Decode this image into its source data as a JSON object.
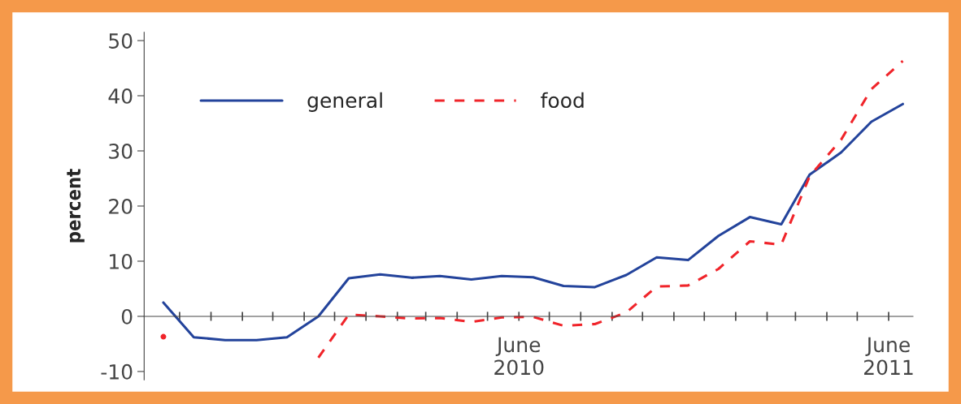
{
  "chart_data": {
    "type": "line",
    "ylabel": "percent",
    "x": [
      "2009-06-15",
      "2009-07-15",
      "2009-08-15",
      "2009-09-15",
      "2009-10-15",
      "2009-11-15",
      "2009-12-15",
      "2010-01-15",
      "2010-02-15",
      "2010-03-15",
      "2010-04-15",
      "2010-05-15",
      "2010-06-15",
      "2010-07-15",
      "2010-08-15",
      "2010-09-15",
      "2010-10-15",
      "2010-11-15",
      "2010-12-15",
      "2011-01-15",
      "2011-02-15",
      "2011-03-15",
      "2011-04-15",
      "2011-05-15",
      "2011-06-15"
    ],
    "series": [
      {
        "name": "general",
        "color": "#23439b",
        "line_style": "solid",
        "values": [
          2.5,
          -3.8,
          -4.3,
          -4.3,
          -3.8,
          0,
          6.9,
          7.6,
          7.0,
          7.3,
          6.7,
          7.3,
          7.1,
          5.5,
          5.3,
          7.5,
          10.7,
          10.2,
          14.6,
          18.0,
          16.7,
          25.7,
          29.7,
          35.3,
          38.5
        ]
      },
      {
        "name": "food",
        "color": "#f0242a",
        "line_style": "dashed",
        "values": [
          -3.7,
          null,
          null,
          null,
          null,
          -7.5,
          0.3,
          0.0,
          -0.4,
          -0.3,
          -1.0,
          -0.2,
          -0.1,
          -1.7,
          -1.4,
          0.7,
          5.4,
          5.6,
          8.6,
          13.6,
          13.0,
          25.4,
          32.0,
          41.2,
          46.3
        ]
      }
    ],
    "xlim": [
      "2009-05-27",
      "2011-06-25"
    ],
    "xticks": [
      {
        "value": "2009-07-01",
        "label": null
      },
      {
        "value": "2009-08-01",
        "label": null
      },
      {
        "value": "2009-09-01",
        "label": null
      },
      {
        "value": "2009-10-01",
        "label": null
      },
      {
        "value": "2009-11-01",
        "label": null
      },
      {
        "value": "2009-12-01",
        "label": null
      },
      {
        "value": "2010-01-01",
        "label": null
      },
      {
        "value": "2010-02-01",
        "label": null
      },
      {
        "value": "2010-03-01",
        "label": null
      },
      {
        "value": "2010-04-01",
        "label": null
      },
      {
        "value": "2010-05-01",
        "label": null
      },
      {
        "value": "2010-06-01",
        "label": "June\n2010"
      },
      {
        "value": "2010-07-01",
        "label": null
      },
      {
        "value": "2010-08-01",
        "label": null
      },
      {
        "value": "2010-09-01",
        "label": null
      },
      {
        "value": "2010-10-01",
        "label": null
      },
      {
        "value": "2010-11-01",
        "label": null
      },
      {
        "value": "2010-12-01",
        "label": null
      },
      {
        "value": "2011-01-01",
        "label": null
      },
      {
        "value": "2011-02-01",
        "label": null
      },
      {
        "value": "2011-03-01",
        "label": null
      },
      {
        "value": "2011-04-01",
        "label": null
      },
      {
        "value": "2011-05-01",
        "label": null
      },
      {
        "value": "2011-06-01",
        "label": "June\n2011"
      }
    ],
    "ylim": [
      -11.5,
      51.5
    ],
    "yticks": [
      -10,
      0,
      10,
      20,
      30,
      40,
      50
    ],
    "legend": "top left",
    "grid": false
  }
}
